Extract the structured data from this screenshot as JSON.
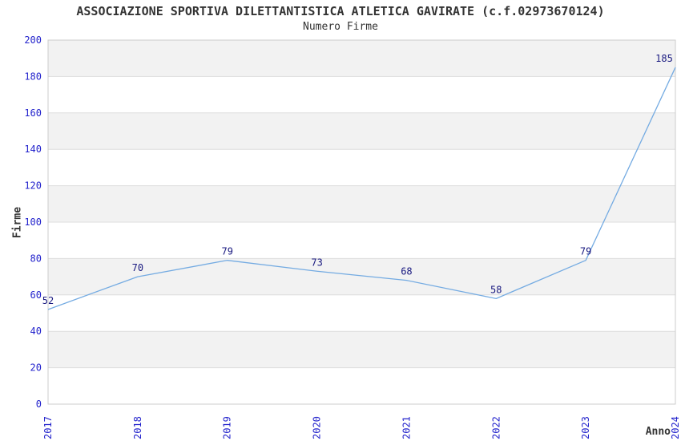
{
  "chart_data": {
    "type": "line",
    "title": "ASSOCIAZIONE SPORTIVA DILETTANTISTICA ATLETICA GAVIRATE (c.f.02973670124)",
    "subtitle": "Numero Firme",
    "xlabel": "Anno",
    "ylabel": "Firme",
    "categories": [
      "2017",
      "2018",
      "2019",
      "2020",
      "2021",
      "2022",
      "2023",
      "2024"
    ],
    "values": [
      52,
      70,
      79,
      73,
      68,
      58,
      79,
      185
    ],
    "yticks": [
      0,
      20,
      40,
      60,
      80,
      100,
      120,
      140,
      160,
      180,
      200
    ],
    "ylim": [
      0,
      200
    ],
    "grid": true,
    "legend_position": "none",
    "colors": {
      "line": "#74abe2",
      "tick_label": "#2323cc",
      "data_label": "#191980",
      "band": "#f2f2f2",
      "gridline": "#dddddd",
      "border": "#cccccc",
      "text": "#333333",
      "background": "#ffffff"
    }
  }
}
